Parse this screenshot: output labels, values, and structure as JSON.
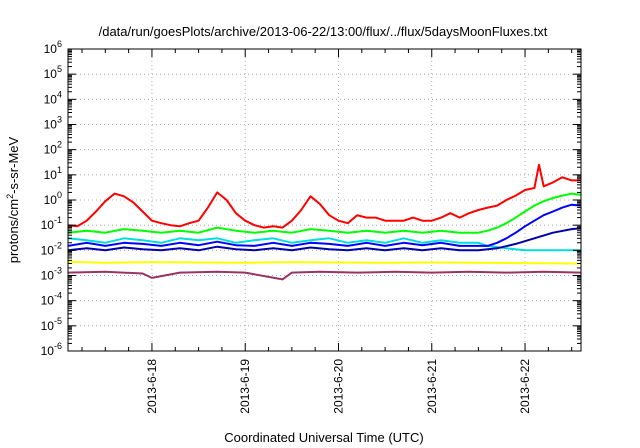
{
  "chart_data": {
    "type": "line",
    "title": "/data/run/goesPlots/archive/2013-06-22/13:00/flux/../flux/5daysMoonFluxes.txt",
    "xlabel": "Coordinated Universal Time (UTC)",
    "ylabel": "protons/cm²-s-sr-MeV",
    "ylabel_base": "protons/cm",
    "ylabel_sup": "2",
    "ylabel_rest": "-s-sr-MeV",
    "y_scale": "log",
    "ylim": [
      1e-06,
      1000000.0
    ],
    "y_ticks": [
      {
        "mantissa": "10",
        "exp": "-6"
      },
      {
        "mantissa": "10",
        "exp": "-5"
      },
      {
        "mantissa": "10",
        "exp": "-4"
      },
      {
        "mantissa": "10",
        "exp": "-3"
      },
      {
        "mantissa": "10",
        "exp": "-2"
      },
      {
        "mantissa": "10",
        "exp": "-1"
      },
      {
        "mantissa": "10",
        "exp": "0"
      },
      {
        "mantissa": "10",
        "exp": "1"
      },
      {
        "mantissa": "10",
        "exp": "2"
      },
      {
        "mantissa": "10",
        "exp": "3"
      },
      {
        "mantissa": "10",
        "exp": "4"
      },
      {
        "mantissa": "10",
        "exp": "5"
      },
      {
        "mantissa": "10",
        "exp": "6"
      }
    ],
    "x_unit": "day",
    "xlim": [
      17.1,
      22.6
    ],
    "x_ticks": [
      {
        "value": 18,
        "label": "2013-6-18"
      },
      {
        "value": 19,
        "label": "2013-6-19"
      },
      {
        "value": 20,
        "label": "2013-6-20"
      },
      {
        "value": 21,
        "label": "2013-6-21"
      },
      {
        "value": 22,
        "label": "2013-6-22"
      }
    ],
    "grid": true,
    "legend": "none",
    "series": [
      {
        "color": "#ff0000",
        "x": [
          17.1,
          17.2,
          17.3,
          17.4,
          17.5,
          17.6,
          17.7,
          17.8,
          17.9,
          18.0,
          18.1,
          18.2,
          18.3,
          18.4,
          18.5,
          18.6,
          18.7,
          18.8,
          18.9,
          19.0,
          19.1,
          19.2,
          19.3,
          19.4,
          19.5,
          19.6,
          19.7,
          19.8,
          19.9,
          20.0,
          20.1,
          20.2,
          20.3,
          20.4,
          20.5,
          20.6,
          20.7,
          20.8,
          20.9,
          21.0,
          21.1,
          21.2,
          21.3,
          21.4,
          21.5,
          21.6,
          21.7,
          21.8,
          21.9,
          22.0,
          22.1,
          22.15,
          22.2,
          22.3,
          22.4,
          22.5,
          22.6
        ],
        "y": [
          0.1,
          0.09,
          0.15,
          0.35,
          0.9,
          1.8,
          1.4,
          0.8,
          0.35,
          0.15,
          0.12,
          0.1,
          0.09,
          0.12,
          0.15,
          0.5,
          2.0,
          1.0,
          0.3,
          0.15,
          0.1,
          0.08,
          0.09,
          0.08,
          0.15,
          0.4,
          1.4,
          0.7,
          0.25,
          0.15,
          0.12,
          0.25,
          0.2,
          0.2,
          0.15,
          0.15,
          0.15,
          0.2,
          0.15,
          0.15,
          0.2,
          0.3,
          0.2,
          0.3,
          0.4,
          0.5,
          0.6,
          1.0,
          1.5,
          2.5,
          3.0,
          25,
          3.5,
          5.0,
          8.0,
          6.0,
          6.0
        ]
      },
      {
        "color": "#00ff00",
        "x": [
          17.1,
          17.3,
          17.5,
          17.7,
          17.9,
          18.1,
          18.3,
          18.5,
          18.7,
          18.9,
          19.1,
          19.3,
          19.5,
          19.7,
          19.9,
          20.1,
          20.3,
          20.5,
          20.7,
          20.9,
          21.1,
          21.3,
          21.5,
          21.6,
          21.7,
          21.8,
          21.9,
          22.0,
          22.1,
          22.2,
          22.3,
          22.4,
          22.5,
          22.6
        ],
        "y": [
          0.05,
          0.06,
          0.05,
          0.07,
          0.06,
          0.05,
          0.06,
          0.05,
          0.08,
          0.06,
          0.05,
          0.06,
          0.05,
          0.07,
          0.06,
          0.05,
          0.06,
          0.05,
          0.06,
          0.05,
          0.06,
          0.05,
          0.05,
          0.06,
          0.08,
          0.12,
          0.2,
          0.35,
          0.6,
          0.9,
          1.2,
          1.5,
          1.8,
          1.6
        ]
      },
      {
        "color": "#00dddd",
        "x": [
          17.1,
          17.3,
          17.5,
          17.7,
          17.9,
          18.1,
          18.3,
          18.5,
          18.7,
          18.9,
          19.1,
          19.3,
          19.5,
          19.7,
          19.9,
          20.1,
          20.3,
          20.5,
          20.7,
          20.9,
          21.1,
          21.3,
          21.5,
          21.6,
          21.8,
          22.0,
          22.2,
          22.4,
          22.6
        ],
        "y": [
          0.03,
          0.025,
          0.02,
          0.03,
          0.025,
          0.02,
          0.03,
          0.025,
          0.03,
          0.02,
          0.025,
          0.03,
          0.02,
          0.025,
          0.03,
          0.02,
          0.025,
          0.02,
          0.03,
          0.02,
          0.025,
          0.02,
          0.02,
          0.015,
          0.012,
          0.01,
          0.01,
          0.01,
          0.01
        ]
      },
      {
        "color": "#0000ff",
        "x": [
          17.1,
          17.3,
          17.5,
          17.7,
          17.9,
          18.1,
          18.3,
          18.5,
          18.7,
          18.9,
          19.1,
          19.3,
          19.5,
          19.7,
          19.9,
          20.1,
          20.3,
          20.5,
          20.7,
          20.9,
          21.1,
          21.3,
          21.5,
          21.6,
          21.7,
          21.8,
          21.9,
          22.0,
          22.1,
          22.2,
          22.3,
          22.4,
          22.5,
          22.6
        ],
        "y": [
          0.015,
          0.02,
          0.015,
          0.02,
          0.018,
          0.015,
          0.02,
          0.016,
          0.022,
          0.016,
          0.015,
          0.02,
          0.015,
          0.02,
          0.018,
          0.015,
          0.02,
          0.015,
          0.02,
          0.016,
          0.02,
          0.015,
          0.015,
          0.015,
          0.02,
          0.03,
          0.05,
          0.09,
          0.15,
          0.25,
          0.35,
          0.5,
          0.65,
          0.6
        ]
      },
      {
        "color": "#0000aa",
        "x": [
          17.1,
          17.3,
          17.5,
          17.7,
          17.9,
          18.1,
          18.3,
          18.5,
          18.7,
          18.9,
          19.1,
          19.3,
          19.5,
          19.7,
          19.9,
          20.1,
          20.3,
          20.5,
          20.7,
          20.9,
          21.1,
          21.3,
          21.5,
          21.7,
          21.9,
          22.1,
          22.3,
          22.5,
          22.6
        ],
        "y": [
          0.01,
          0.012,
          0.01,
          0.013,
          0.011,
          0.01,
          0.012,
          0.01,
          0.014,
          0.011,
          0.01,
          0.012,
          0.01,
          0.013,
          0.011,
          0.01,
          0.012,
          0.01,
          0.012,
          0.01,
          0.012,
          0.01,
          0.01,
          0.012,
          0.018,
          0.03,
          0.05,
          0.07,
          0.075
        ]
      },
      {
        "color": "#ffff00",
        "x": [
          17.1,
          17.5,
          18.0,
          18.5,
          19.0,
          19.5,
          20.0,
          20.5,
          21.0,
          21.5,
          22.0,
          22.5,
          22.6
        ],
        "y": [
          0.0035,
          0.0032,
          0.0034,
          0.0033,
          0.0032,
          0.0034,
          0.0033,
          0.0032,
          0.0033,
          0.0032,
          0.0031,
          0.003,
          0.003
        ]
      },
      {
        "color": "#993366",
        "x": [
          17.1,
          17.5,
          17.9,
          18.0,
          18.3,
          18.7,
          19.0,
          19.4,
          19.5,
          19.8,
          20.2,
          20.6,
          21.0,
          21.4,
          21.8,
          22.2,
          22.6
        ],
        "y": [
          0.0013,
          0.0014,
          0.0012,
          0.0008,
          0.0013,
          0.0014,
          0.0013,
          0.0007,
          0.0013,
          0.0014,
          0.0013,
          0.0014,
          0.0013,
          0.0014,
          0.0013,
          0.0014,
          0.0013
        ]
      }
    ]
  }
}
